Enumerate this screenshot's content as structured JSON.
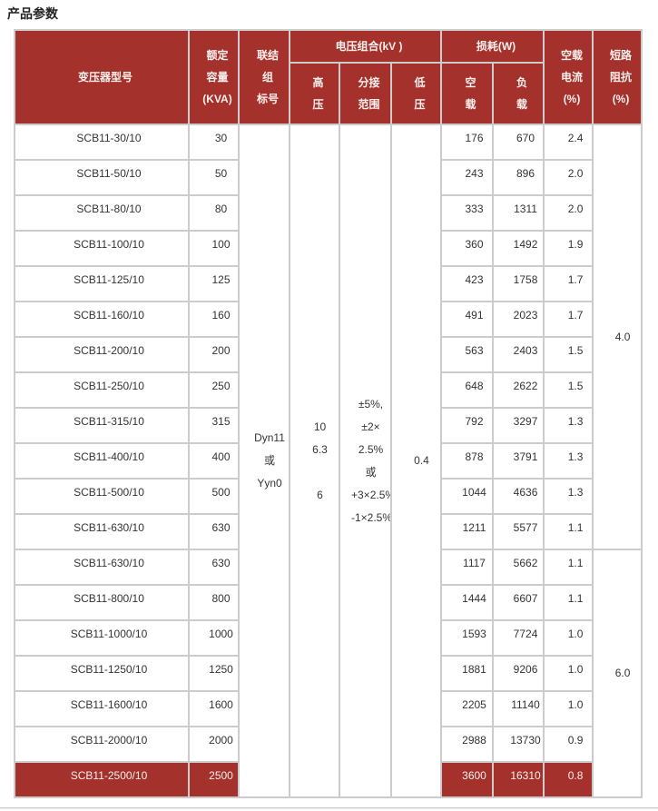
{
  "title": "产品参数",
  "colors": {
    "accent_red": "#A4312C",
    "border_gray": "#CCCCCC",
    "body_text": "#333333",
    "header_text": "#F9F0ED"
  },
  "table": {
    "headers": {
      "model": "变压器型号",
      "capacity": "额定\n容量\n(KVA)",
      "connection": "联结\n组\n标号",
      "voltage_group": "电压组合(kV )",
      "hv": "高\n压",
      "tap_range": "分接\n范围",
      "lv": "低\n压",
      "loss_group": "损耗(W)",
      "no_load_loss": "空\n载",
      "load_loss": "负\n载",
      "no_load_current": "空载\n电流\n(%)",
      "impedance": "短路\n阻抗\n(%)"
    },
    "merged": {
      "connection": "Dyn11\n或\nYyn0",
      "hv": "10\n6.3\n\n6",
      "tap_range": "±5%,\n±2×\n2.5%\n或\n+3×2.5%\n-1×2.5%",
      "lv": "0.4",
      "impedance_top": {
        "value": "4.0",
        "rows": 12
      },
      "impedance_bottom": {
        "value": "6.0",
        "rows": 7
      }
    },
    "rows": [
      {
        "model": "SCB11-30/10",
        "capacity": "30",
        "no_load_loss": "176",
        "load_loss": "670",
        "no_load_current": "2.4",
        "highlight": false
      },
      {
        "model": "SCB11-50/10",
        "capacity": "50",
        "no_load_loss": "243",
        "load_loss": "896",
        "no_load_current": "2.0",
        "highlight": false
      },
      {
        "model": "SCB11-80/10",
        "capacity": "80",
        "no_load_loss": "333",
        "load_loss": "1311",
        "no_load_current": "2.0",
        "highlight": false
      },
      {
        "model": "SCB11-100/10",
        "capacity": "100",
        "no_load_loss": "360",
        "load_loss": "1492",
        "no_load_current": "1.9",
        "highlight": false
      },
      {
        "model": "SCB11-125/10",
        "capacity": "125",
        "no_load_loss": "423",
        "load_loss": "1758",
        "no_load_current": "1.7",
        "highlight": false
      },
      {
        "model": "SCB11-160/10",
        "capacity": "160",
        "no_load_loss": "491",
        "load_loss": "2023",
        "no_load_current": "1.7",
        "highlight": false
      },
      {
        "model": "SCB11-200/10",
        "capacity": "200",
        "no_load_loss": "563",
        "load_loss": "2403",
        "no_load_current": "1.5",
        "highlight": false
      },
      {
        "model": "SCB11-250/10",
        "capacity": "250",
        "no_load_loss": "648",
        "load_loss": "2622",
        "no_load_current": "1.5",
        "highlight": false
      },
      {
        "model": "SCB11-315/10",
        "capacity": "315",
        "no_load_loss": "792",
        "load_loss": "3297",
        "no_load_current": "1.3",
        "highlight": false
      },
      {
        "model": "SCB11-400/10",
        "capacity": "400",
        "no_load_loss": "878",
        "load_loss": "3791",
        "no_load_current": "1.3",
        "highlight": false
      },
      {
        "model": "SCB11-500/10",
        "capacity": "500",
        "no_load_loss": "1044",
        "load_loss": "4636",
        "no_load_current": "1.3",
        "highlight": false
      },
      {
        "model": "SCB11-630/10",
        "capacity": "630",
        "no_load_loss": "1211",
        "load_loss": "5577",
        "no_load_current": "1.1",
        "highlight": false
      },
      {
        "model": "SCB11-630/10",
        "capacity": "630",
        "no_load_loss": "1117",
        "load_loss": "5662",
        "no_load_current": "1.1",
        "highlight": false
      },
      {
        "model": "SCB11-800/10",
        "capacity": "800",
        "no_load_loss": "1444",
        "load_loss": "6607",
        "no_load_current": "1.1",
        "highlight": false
      },
      {
        "model": "SCB11-1000/10",
        "capacity": "1000",
        "no_load_loss": "1593",
        "load_loss": "7724",
        "no_load_current": "1.0",
        "highlight": false
      },
      {
        "model": "SCB11-1250/10",
        "capacity": "1250",
        "no_load_loss": "1881",
        "load_loss": "9206",
        "no_load_current": "1.0",
        "highlight": false
      },
      {
        "model": "SCB11-1600/10",
        "capacity": "1600",
        "no_load_loss": "2205",
        "load_loss": "11140",
        "no_load_current": "1.0",
        "highlight": false
      },
      {
        "model": "SCB11-2000/10",
        "capacity": "2000",
        "no_load_loss": "2988",
        "load_loss": "13730",
        "no_load_current": "0.9",
        "highlight": false
      },
      {
        "model": "SCB11-2500/10",
        "capacity": "2500",
        "no_load_loss": "3600",
        "load_loss": "16310",
        "no_load_current": "0.8",
        "highlight": true
      }
    ]
  }
}
